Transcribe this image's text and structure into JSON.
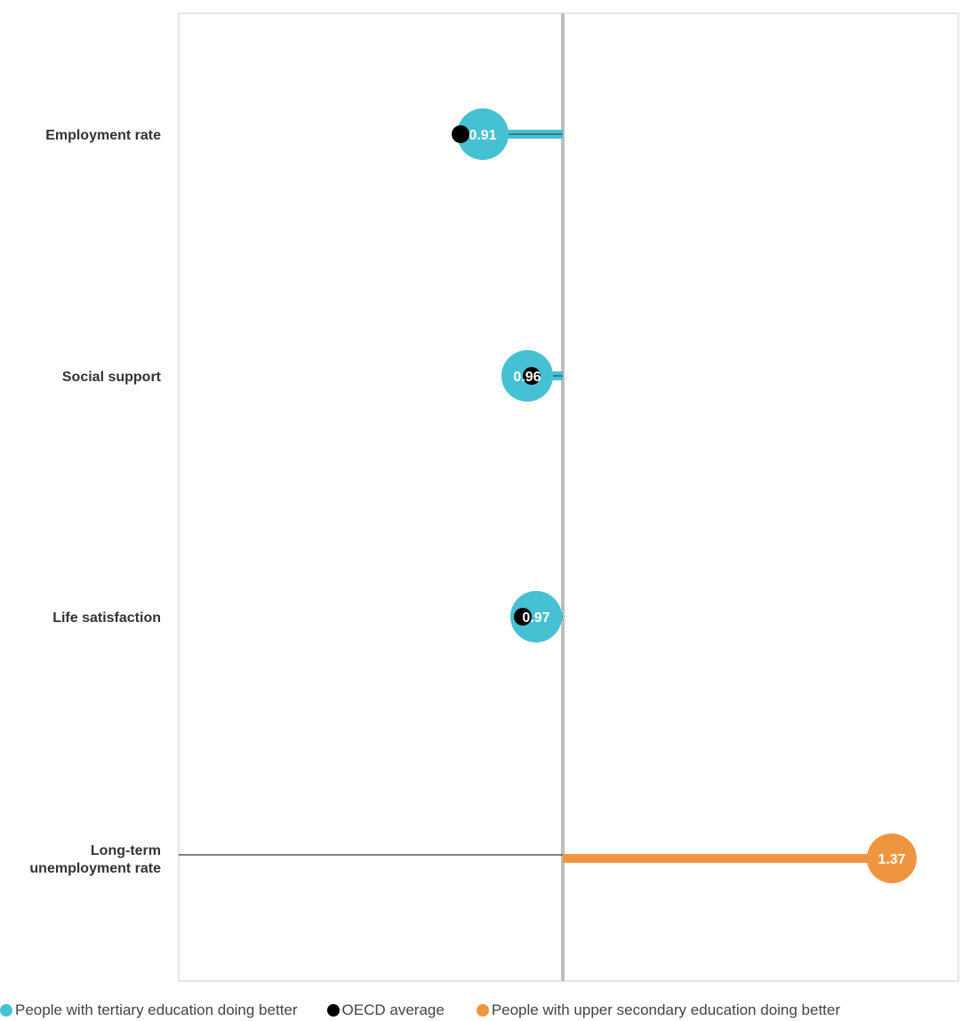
{
  "chart_data": {
    "type": "lollipop",
    "categories": [
      {
        "name": "Employment rate",
        "lines": [
          "Employment rate"
        ],
        "value": 0.91,
        "oecd": 0.885,
        "group": "tertiary",
        "label": "0.91"
      },
      {
        "name": "Social support",
        "lines": [
          "Social support"
        ],
        "value": 0.96,
        "oecd": 0.965,
        "group": "tertiary",
        "label": "0.96"
      },
      {
        "name": "Life satisfaction",
        "lines": [
          "Life satisfaction"
        ],
        "value": 0.97,
        "oecd": 0.955,
        "group": "tertiary",
        "label": "0.97"
      },
      {
        "name": "Long-term unemployment rate",
        "lines": [
          "Long-term",
          "unemployment rate"
        ],
        "value": 1.37,
        "oecd": null,
        "group": "upper_secondary",
        "label": "1.37"
      }
    ],
    "reference_value": 1.0,
    "xlim": [
      0.6,
      1.4
    ],
    "grid": false,
    "legend_position": "bottom",
    "colors": {
      "tertiary": "#46C1D4",
      "oecd": "#000000",
      "upper_secondary": "#F0953F",
      "reference": "#BDBDBD",
      "frame": "#CCCCCC"
    }
  },
  "legend": {
    "items": [
      {
        "label": "People with tertiary education doing better",
        "color": "#46C1D4"
      },
      {
        "label": "OECD average",
        "color": "#000000"
      },
      {
        "label": "People with upper secondary education doing better",
        "color": "#F0953F"
      }
    ]
  }
}
